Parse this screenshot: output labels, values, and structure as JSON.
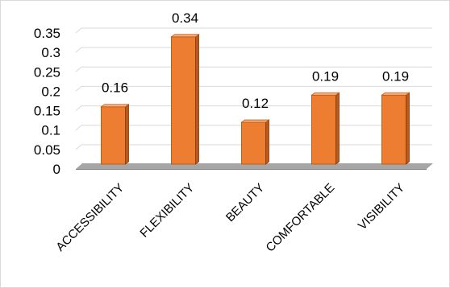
{
  "chart_data": {
    "type": "bar",
    "style": "3d-clustered-column",
    "categories": [
      "ACCESSIBILITY",
      "FLEXIBILITY",
      "BEAUTY",
      "COMFORTABLE",
      "VISIBILITY"
    ],
    "values": [
      0.16,
      0.34,
      0.12,
      0.19,
      0.19
    ],
    "data_labels": [
      "0.16",
      "0.34",
      "0.12",
      "0.19",
      "0.19"
    ],
    "y_ticks": [
      "0",
      "0.05",
      "0.1",
      "0.15",
      "0.2",
      "0.25",
      "0.3",
      "0.35"
    ],
    "ylim": [
      0,
      0.35
    ],
    "grid": true,
    "legend": "none",
    "title": "",
    "xlabel": "",
    "ylabel": "",
    "colors": {
      "bar_front": "#ED7D31",
      "bar_side": "#B85A1E",
      "bar_top": "#F4B183",
      "floor": "#A6A6A6",
      "gridline": "#D9D9D9"
    }
  }
}
